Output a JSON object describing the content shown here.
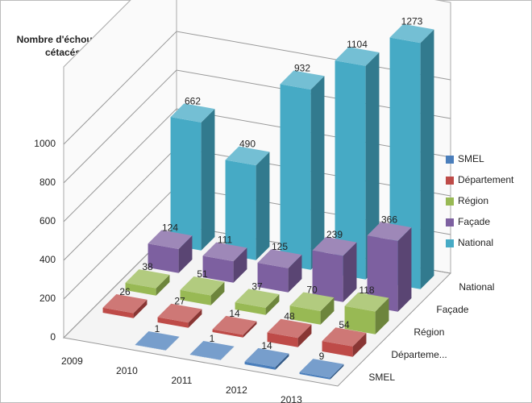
{
  "chart_data": {
    "type": "bar3d",
    "y_label": [
      "Nombre d'échouage",
      "cétacés"
    ],
    "categories": [
      "2009",
      "2010",
      "2011",
      "2012",
      "2013"
    ],
    "depth_labels": [
      "SMEL",
      "Départeme...",
      "Région",
      "Façade",
      "National"
    ],
    "series": [
      {
        "name": "SMEL",
        "color": "#4a7ebb",
        "values": [
          null,
          1,
          1,
          14,
          9
        ]
      },
      {
        "name": "Département",
        "color": "#be4b48",
        "values": [
          26,
          27,
          14,
          48,
          54
        ]
      },
      {
        "name": "Région",
        "color": "#98b954",
        "values": [
          38,
          51,
          37,
          70,
          118
        ]
      },
      {
        "name": "Façade",
        "color": "#7d60a0",
        "values": [
          124,
          111,
          125,
          239,
          366
        ]
      },
      {
        "name": "National",
        "color": "#46aac5",
        "values": [
          662,
          490,
          932,
          1104,
          1273
        ]
      }
    ],
    "ylim": [
      0,
      1400
    ],
    "yticks": [
      0,
      200,
      400,
      600,
      800,
      1000
    ],
    "grid": true
  }
}
